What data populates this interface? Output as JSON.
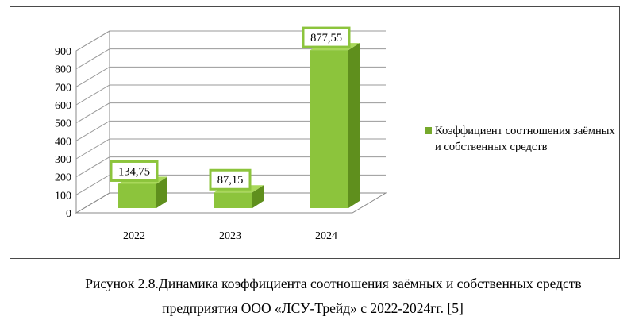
{
  "chart_data": {
    "type": "bar",
    "categories": [
      "2022",
      "2023",
      "2024"
    ],
    "series": [
      {
        "name": "Коэффициент соотношения заёмных и собственных средств",
        "values": [
          134.75,
          87.15,
          877.55
        ]
      }
    ],
    "data_labels": [
      "134,75",
      "87,15",
      "877,55"
    ],
    "y_ticks": [
      "0",
      "100",
      "200",
      "300",
      "400",
      "500",
      "600",
      "700",
      "800",
      "900"
    ],
    "ylim": [
      0,
      900
    ],
    "grid": true,
    "legend_position": "right",
    "colors": {
      "bar_front": "#8cc43c",
      "bar_side": "#5f8f1d",
      "bar_top": "#a9d85a",
      "label_border": "#8cc43c"
    },
    "xlabel": "",
    "ylabel": ""
  },
  "legend": {
    "label": "Коэффициент соотношения заёмных и собственных средств"
  },
  "caption": {
    "line1": "Рисунок 2.8.Динамика коэффициента соотношения заёмных и собственных средств",
    "line2": "предприятия ООО «ЛСУ-Трейд» с 2022-2024гг. [5]"
  }
}
